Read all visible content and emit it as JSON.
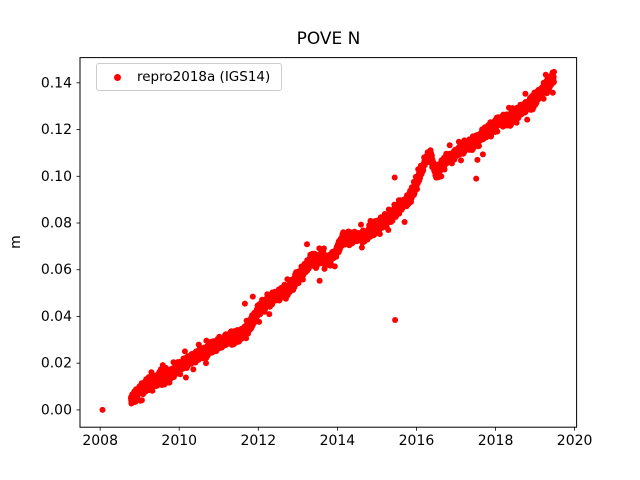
{
  "chart_data": {
    "type": "scatter",
    "title": "POVE N",
    "xlabel": "",
    "ylabel": "m",
    "legend": {
      "label": "repro2018a (IGS14)",
      "position": "upper left",
      "marker_color": "#ff0000"
    },
    "marker": {
      "color": "#ff0000",
      "radius_px": 3
    },
    "grid": false,
    "xlim": [
      2007.49,
      2020.05
    ],
    "ylim": [
      -0.0074,
      0.1508
    ],
    "xticks": [
      2008,
      2010,
      2012,
      2014,
      2016,
      2018,
      2020
    ],
    "yticks": [
      0.0,
      0.02,
      0.04,
      0.06,
      0.08,
      0.1,
      0.12,
      0.14
    ],
    "series_span_years": [
      2008.78,
      2019.48
    ],
    "points_per_year": 300,
    "noise_std_m": 0.0012,
    "trend_anchors": [
      [
        2008.78,
        0.0045
      ],
      [
        2009.0,
        0.0085
      ],
      [
        2009.2,
        0.0105
      ],
      [
        2009.4,
        0.012
      ],
      [
        2009.6,
        0.0145
      ],
      [
        2009.8,
        0.0155
      ],
      [
        2010.0,
        0.0185
      ],
      [
        2010.2,
        0.0205
      ],
      [
        2010.4,
        0.0225
      ],
      [
        2010.6,
        0.0245
      ],
      [
        2010.8,
        0.026
      ],
      [
        2011.0,
        0.0285
      ],
      [
        2011.2,
        0.03
      ],
      [
        2011.4,
        0.031
      ],
      [
        2011.6,
        0.033
      ],
      [
        2011.8,
        0.0365
      ],
      [
        2012.0,
        0.0425
      ],
      [
        2012.2,
        0.046
      ],
      [
        2012.4,
        0.048
      ],
      [
        2012.6,
        0.05
      ],
      [
        2012.8,
        0.0525
      ],
      [
        2013.0,
        0.056
      ],
      [
        2013.2,
        0.061
      ],
      [
        2013.35,
        0.065
      ],
      [
        2013.5,
        0.063
      ],
      [
        2013.65,
        0.0655
      ],
      [
        2013.8,
        0.0635
      ],
      [
        2014.0,
        0.069
      ],
      [
        2014.2,
        0.0735
      ],
      [
        2014.4,
        0.0745
      ],
      [
        2014.6,
        0.074
      ],
      [
        2014.8,
        0.0755
      ],
      [
        2015.0,
        0.0785
      ],
      [
        2015.2,
        0.081
      ],
      [
        2015.4,
        0.084
      ],
      [
        2015.6,
        0.087
      ],
      [
        2015.8,
        0.0905
      ],
      [
        2016.0,
        0.096
      ],
      [
        2016.2,
        0.106
      ],
      [
        2016.35,
        0.109
      ],
      [
        2016.5,
        0.1005
      ],
      [
        2016.65,
        0.1055
      ],
      [
        2016.8,
        0.1075
      ],
      [
        2017.0,
        0.11
      ],
      [
        2017.2,
        0.112
      ],
      [
        2017.4,
        0.114
      ],
      [
        2017.6,
        0.1165
      ],
      [
        2017.8,
        0.1195
      ],
      [
        2018.0,
        0.1225
      ],
      [
        2018.2,
        0.124
      ],
      [
        2018.4,
        0.125
      ],
      [
        2018.6,
        0.1275
      ],
      [
        2018.8,
        0.1305
      ],
      [
        2019.0,
        0.133
      ],
      [
        2019.2,
        0.137
      ],
      [
        2019.4,
        0.1405
      ],
      [
        2019.48,
        0.1415
      ]
    ],
    "outlier_points": [
      [
        2008.06,
        0.0
      ],
      [
        2011.66,
        0.0455
      ],
      [
        2011.86,
        0.0485
      ],
      [
        2014.62,
        0.0695
      ],
      [
        2015.46,
        0.0385
      ],
      [
        2015.45,
        0.0995
      ],
      [
        2017.51,
        0.099
      ],
      [
        2017.54,
        0.107
      ]
    ]
  }
}
